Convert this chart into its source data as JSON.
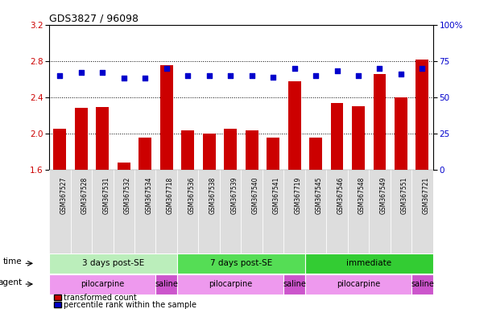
{
  "title": "GDS3827 / 96098",
  "samples": [
    "GSM367527",
    "GSM367528",
    "GSM367531",
    "GSM367532",
    "GSM367534",
    "GSM367718",
    "GSM367536",
    "GSM367538",
    "GSM367539",
    "GSM367540",
    "GSM367541",
    "GSM367719",
    "GSM367545",
    "GSM367546",
    "GSM367548",
    "GSM367549",
    "GSM367551",
    "GSM367721"
  ],
  "transformed_count": [
    2.05,
    2.28,
    2.29,
    1.68,
    1.96,
    2.75,
    2.04,
    2.0,
    2.05,
    2.04,
    1.96,
    2.58,
    1.96,
    2.34,
    2.3,
    2.66,
    2.4,
    2.82
  ],
  "percentile_rank": [
    65,
    67,
    67,
    63,
    63,
    70,
    65,
    65,
    65,
    65,
    64,
    70,
    65,
    68,
    65,
    70,
    66,
    70
  ],
  "ylim_left": [
    1.6,
    3.2
  ],
  "ylim_right": [
    0,
    100
  ],
  "yticks_left": [
    1.6,
    2.0,
    2.4,
    2.8,
    3.2
  ],
  "yticks_right": [
    0,
    25,
    50,
    75,
    100
  ],
  "bar_color": "#cc0000",
  "dot_color": "#0000cc",
  "time_groups": [
    {
      "label": "3 days post-SE",
      "start": 0,
      "end": 5,
      "color": "#bbeebb"
    },
    {
      "label": "7 days post-SE",
      "start": 6,
      "end": 11,
      "color": "#55dd55"
    },
    {
      "label": "immediate",
      "start": 12,
      "end": 17,
      "color": "#33cc33"
    }
  ],
  "agent_groups": [
    {
      "label": "pilocarpine",
      "start": 0,
      "end": 4,
      "color": "#ee99ee"
    },
    {
      "label": "saline",
      "start": 5,
      "end": 5,
      "color": "#cc55cc"
    },
    {
      "label": "pilocarpine",
      "start": 6,
      "end": 10,
      "color": "#ee99ee"
    },
    {
      "label": "saline",
      "start": 11,
      "end": 11,
      "color": "#cc55cc"
    },
    {
      "label": "pilocarpine",
      "start": 12,
      "end": 16,
      "color": "#ee99ee"
    },
    {
      "label": "saline",
      "start": 17,
      "end": 17,
      "color": "#cc55cc"
    }
  ],
  "legend_bar_label": "transformed count",
  "legend_dot_label": "percentile rank within the sample",
  "time_label": "time",
  "agent_label": "agent",
  "background_color": "#ffffff",
  "plot_bg_color": "#ffffff",
  "tick_label_color_left": "#cc0000",
  "tick_label_color_right": "#0000cc",
  "xtick_bg_color": "#dddddd"
}
